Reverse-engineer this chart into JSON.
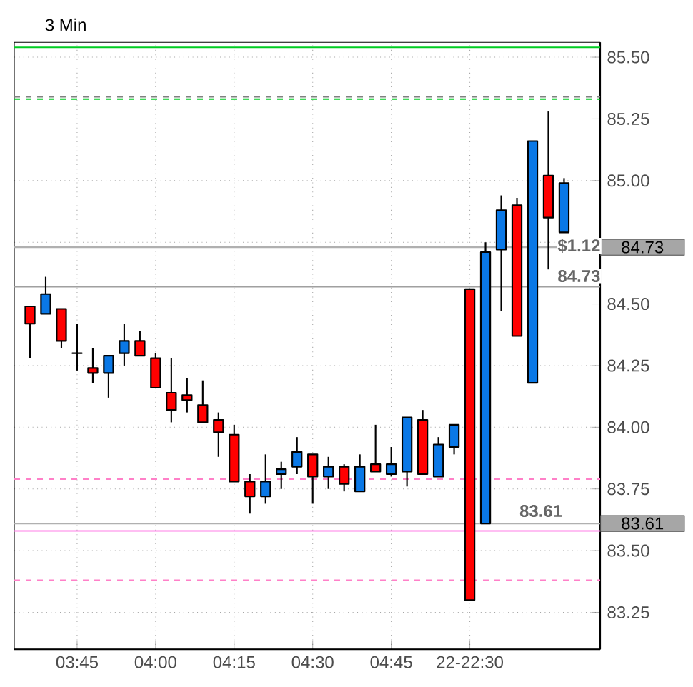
{
  "chart_data": {
    "type": "candlestick",
    "title": "3 Min",
    "categories": [
      null,
      null,
      null,
      "03:45",
      null,
      null,
      null,
      null,
      "04:00",
      null,
      null,
      null,
      null,
      "04:15",
      null,
      null,
      null,
      null,
      "04:30",
      null,
      null,
      null,
      null,
      "04:45",
      null,
      null,
      null,
      null,
      "22-22:30",
      null,
      null,
      null,
      null,
      null,
      null
    ],
    "ohlc": [
      [
        84.49,
        84.49,
        84.28,
        84.42
      ],
      [
        84.46,
        84.61,
        84.46,
        84.54
      ],
      [
        84.48,
        84.48,
        84.32,
        84.35
      ],
      [
        84.3,
        84.42,
        84.23,
        84.3
      ],
      [
        84.24,
        84.32,
        84.18,
        84.22
      ],
      [
        84.22,
        84.29,
        84.12,
        84.29
      ],
      [
        84.3,
        84.42,
        84.25,
        84.35
      ],
      [
        84.35,
        84.39,
        84.29,
        84.29
      ],
      [
        84.28,
        84.3,
        84.16,
        84.16
      ],
      [
        84.14,
        84.28,
        84.02,
        84.07
      ],
      [
        84.13,
        84.2,
        84.06,
        84.11
      ],
      [
        84.09,
        84.19,
        84.02,
        84.02
      ],
      [
        84.03,
        84.06,
        83.88,
        83.98
      ],
      [
        83.97,
        84.01,
        83.78,
        83.78
      ],
      [
        83.78,
        83.81,
        83.65,
        83.72
      ],
      [
        83.72,
        83.89,
        83.69,
        83.78
      ],
      [
        83.81,
        83.86,
        83.75,
        83.83
      ],
      [
        83.84,
        83.96,
        83.81,
        83.9
      ],
      [
        83.89,
        83.89,
        83.69,
        83.8
      ],
      [
        83.8,
        83.88,
        83.75,
        83.84
      ],
      [
        83.84,
        83.85,
        83.74,
        83.77
      ],
      [
        83.74,
        83.89,
        83.74,
        83.84
      ],
      [
        83.85,
        84.01,
        83.82,
        83.82
      ],
      [
        83.81,
        83.92,
        83.8,
        83.85
      ],
      [
        83.82,
        84.04,
        83.76,
        84.04
      ],
      [
        84.03,
        84.07,
        83.81,
        83.81
      ],
      [
        83.8,
        83.96,
        83.8,
        83.93
      ],
      [
        83.92,
        84.01,
        83.89,
        84.01
      ],
      [
        84.56,
        84.56,
        83.3,
        83.3
      ],
      [
        83.61,
        84.75,
        83.61,
        84.71
      ],
      [
        84.72,
        84.94,
        84.47,
        84.88
      ],
      [
        84.9,
        84.93,
        84.37,
        84.37
      ],
      [
        84.18,
        85.16,
        84.18,
        85.16
      ],
      [
        85.02,
        85.28,
        84.64,
        84.85
      ],
      [
        84.79,
        85.01,
        84.79,
        84.99
      ]
    ],
    "colors": [
      "#ff0000",
      "#0a78e6",
      "#ff0000",
      "#000000",
      "#ff0000",
      "#0a78e6",
      "#0a78e6",
      "#ff0000",
      "#ff0000",
      "#ff0000",
      "#ff0000",
      "#ff0000",
      "#ff0000",
      "#ff0000",
      "#ff0000",
      "#0a78e6",
      "#0a78e6",
      "#0a78e6",
      "#ff0000",
      "#0a78e6",
      "#ff0000",
      "#0a78e6",
      "#ff0000",
      "#0a78e6",
      "#0a78e6",
      "#ff0000",
      "#0a78e6",
      "#0a78e6",
      "#ff0000",
      "#0a78e6",
      "#0a78e6",
      "#ff0000",
      "#0a78e6",
      "#ff0000",
      "#0a78e6"
    ],
    "ylim": [
      83.1,
      85.56
    ],
    "yticks": [
      {
        "value": 83.25,
        "label": "83.25"
      },
      {
        "value": 83.5,
        "label": "83.50"
      },
      {
        "value": 83.75,
        "label": "83.75"
      },
      {
        "value": 84,
        "label": "84.00"
      },
      {
        "value": 84.25,
        "label": "84.25"
      },
      {
        "value": 84.5,
        "label": "84.50"
      },
      {
        "value": 84.75,
        "label": null
      },
      {
        "value": 85,
        "label": "85.00"
      },
      {
        "value": 85.25,
        "label": "85.25"
      },
      {
        "value": 85.5,
        "label": "85.50"
      }
    ],
    "grid": true,
    "ref_lines": [
      {
        "axis": "y",
        "value": 85.54,
        "color": "#00cc22",
        "line_style": "solid"
      },
      {
        "axis": "y",
        "value": 85.34,
        "color": "#808080",
        "line_style": "dashed"
      },
      {
        "axis": "y",
        "value": 85.33,
        "color": "#00cc22",
        "line_style": "dashed"
      },
      {
        "axis": "y",
        "value": 84.57,
        "color": "#a0a0a0",
        "line_style": "solid"
      },
      {
        "axis": "y",
        "value": 84.73,
        "label": "84.73",
        "color": "#b0b0b0",
        "line_style": "solid"
      },
      {
        "axis": "y",
        "value": 83.79,
        "color": "#ff80c8",
        "line_style": "dashed"
      },
      {
        "axis": "y",
        "value": 83.61,
        "label": "83.61",
        "color": "#b0b0b0",
        "line_style": "solid"
      },
      {
        "axis": "y",
        "value": 83.58,
        "color": "#ff80e8",
        "line_style": "solid"
      },
      {
        "axis": "y",
        "value": 83.38,
        "color": "#ff80c8",
        "line_style": "dashed"
      }
    ],
    "annotations": [
      "$1.12",
      "84.73",
      "83.61"
    ]
  }
}
